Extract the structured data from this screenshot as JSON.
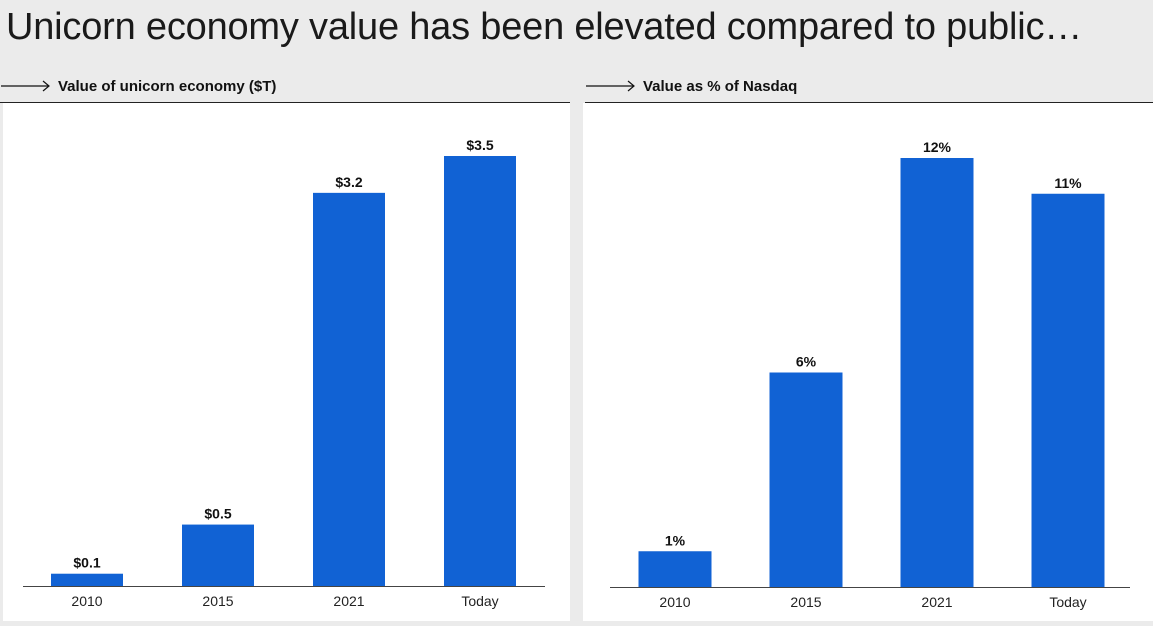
{
  "title": "Unicorn economy value has been elevated compared to public…",
  "colors": {
    "bar": "#1162d4",
    "background": "#ebebeb",
    "panel": "#ffffff",
    "text": "#111111"
  },
  "icons": [
    "arrow-right-icon"
  ],
  "chart_data": [
    {
      "type": "bar",
      "title": "Value of unicorn economy ($T)",
      "categories": [
        "2010",
        "2015",
        "2021",
        "Today"
      ],
      "values": [
        0.1,
        0.5,
        3.2,
        3.5
      ],
      "data_labels": [
        "$0.1",
        "$0.5",
        "$3.2",
        "$3.5"
      ],
      "xlabel": "",
      "ylabel": "",
      "ylim": [
        0,
        3.5
      ],
      "grid": false,
      "y_axis_visible": false
    },
    {
      "type": "bar",
      "title": "Value as % of Nasdaq",
      "categories": [
        "2010",
        "2015",
        "2021",
        "Today"
      ],
      "values": [
        1,
        6,
        12,
        11
      ],
      "data_labels": [
        "1%",
        "6%",
        "12%",
        "11%"
      ],
      "xlabel": "",
      "ylabel": "",
      "ylim": [
        0,
        12
      ],
      "grid": false,
      "y_axis_visible": false
    }
  ]
}
